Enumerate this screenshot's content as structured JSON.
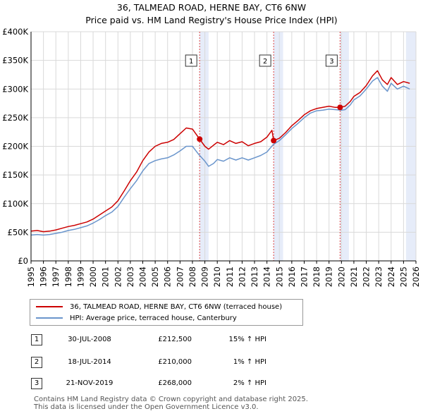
{
  "chart_data": {
    "type": "line",
    "title": "36, TALMEAD ROAD, HERNE BAY, CT6 6NW",
    "subtitle": "Price paid vs. HM Land Registry's House Price Index (HPI)",
    "xlabel": "",
    "ylabel": "",
    "xlim": [
      1995,
      2026
    ],
    "ylim": [
      0,
      400000
    ],
    "x_ticks": [
      "1995",
      "1996",
      "1997",
      "1998",
      "1999",
      "2000",
      "2001",
      "2002",
      "2003",
      "2004",
      "2005",
      "2006",
      "2007",
      "2008",
      "2009",
      "2010",
      "2011",
      "2012",
      "2013",
      "2014",
      "2015",
      "2016",
      "2017",
      "2018",
      "2019",
      "2020",
      "2021",
      "2022",
      "2023",
      "2024",
      "2025",
      "2026"
    ],
    "y_ticks": [
      {
        "value": 0,
        "label": "£0"
      },
      {
        "value": 50000,
        "label": "£50K"
      },
      {
        "value": 100000,
        "label": "£100K"
      },
      {
        "value": 150000,
        "label": "£150K"
      },
      {
        "value": 200000,
        "label": "£200K"
      },
      {
        "value": 250000,
        "label": "£250K"
      },
      {
        "value": 300000,
        "label": "£300K"
      },
      {
        "value": 350000,
        "label": "£350K"
      },
      {
        "value": 400000,
        "label": "£400K"
      }
    ],
    "shaded_periods": [
      [
        2008.58,
        2009.3
      ],
      [
        2014.54,
        2015.3
      ],
      [
        2019.89,
        2020.6
      ],
      [
        2025.2,
        2026
      ]
    ],
    "series": [
      {
        "name": "36, TALMEAD ROAD, HERNE BAY, CT6 6NW (terraced house)",
        "color": "#cc0000",
        "x": [
          1995.0,
          1995.5,
          1996.0,
          1996.5,
          1997.0,
          1997.5,
          1998.0,
          1998.5,
          1999.0,
          1999.5,
          2000.0,
          2000.5,
          2001.0,
          2001.5,
          2002.0,
          2002.5,
          2003.0,
          2003.5,
          2004.0,
          2004.5,
          2005.0,
          2005.5,
          2006.0,
          2006.5,
          2007.0,
          2007.5,
          2008.0,
          2008.58,
          2009.0,
          2009.3,
          2009.7,
          2010.0,
          2010.5,
          2011.0,
          2011.5,
          2012.0,
          2012.5,
          2013.0,
          2013.5,
          2014.0,
          2014.4,
          2014.54,
          2015.0,
          2015.5,
          2016.0,
          2016.5,
          2017.0,
          2017.5,
          2018.0,
          2018.5,
          2019.0,
          2019.5,
          2019.89,
          2020.3,
          2020.7,
          2021.0,
          2021.5,
          2022.0,
          2022.5,
          2022.9,
          2023.3,
          2023.7,
          2024.0,
          2024.5,
          2025.0,
          2025.5
        ],
        "y": [
          52000,
          53000,
          51000,
          52000,
          54000,
          57000,
          60000,
          62000,
          65000,
          68000,
          73000,
          80000,
          87000,
          94000,
          105000,
          122000,
          140000,
          155000,
          175000,
          190000,
          200000,
          205000,
          207000,
          212000,
          222000,
          232000,
          230000,
          212500,
          200000,
          195000,
          202000,
          207000,
          203000,
          210000,
          205000,
          208000,
          201000,
          205000,
          208000,
          216000,
          228000,
          210000,
          214000,
          224000,
          236000,
          245000,
          255000,
          262000,
          266000,
          268000,
          270000,
          268000,
          268000,
          270000,
          278000,
          287000,
          294000,
          306000,
          323000,
          332000,
          316000,
          308000,
          320000,
          308000,
          313000,
          310000
        ]
      },
      {
        "name": "HPI: Average price, terraced house, Canterbury",
        "color": "#6a95cc",
        "x": [
          1995.0,
          1995.5,
          1996.0,
          1996.5,
          1997.0,
          1997.5,
          1998.0,
          1998.5,
          1999.0,
          1999.5,
          2000.0,
          2000.5,
          2001.0,
          2001.5,
          2002.0,
          2002.5,
          2003.0,
          2003.5,
          2004.0,
          2004.5,
          2005.0,
          2005.5,
          2006.0,
          2006.5,
          2007.0,
          2007.5,
          2008.0,
          2008.5,
          2009.0,
          2009.3,
          2009.7,
          2010.0,
          2010.5,
          2011.0,
          2011.5,
          2012.0,
          2012.5,
          2013.0,
          2013.5,
          2014.0,
          2014.5,
          2015.0,
          2015.5,
          2016.0,
          2016.5,
          2017.0,
          2017.5,
          2018.0,
          2018.5,
          2019.0,
          2019.5,
          2020.0,
          2020.3,
          2020.7,
          2021.0,
          2021.5,
          2022.0,
          2022.5,
          2022.9,
          2023.3,
          2023.7,
          2024.0,
          2024.5,
          2025.0,
          2025.5
        ],
        "y": [
          45000,
          46000,
          45000,
          46000,
          48000,
          50000,
          53000,
          55000,
          58000,
          61000,
          66000,
          72000,
          79000,
          85000,
          95000,
          111000,
          126000,
          140000,
          157000,
          170000,
          175000,
          178000,
          180000,
          185000,
          192000,
          200000,
          200000,
          186000,
          174000,
          165000,
          170000,
          177000,
          174000,
          180000,
          176000,
          180000,
          176000,
          180000,
          184000,
          190000,
          203000,
          210000,
          220000,
          231000,
          240000,
          250000,
          258000,
          262000,
          263000,
          265000,
          264000,
          263000,
          264000,
          272000,
          281000,
          288000,
          300000,
          314000,
          320000,
          305000,
          296000,
          310000,
          300000,
          305000,
          300000
        ]
      }
    ],
    "sales": [
      {
        "label": "1",
        "x": 2008.58,
        "price": 212500
      },
      {
        "label": "2",
        "x": 2014.54,
        "price": 210000
      },
      {
        "label": "3",
        "x": 2019.89,
        "price": 268000
      }
    ]
  },
  "legend": {
    "property_label": "36, TALMEAD ROAD, HERNE BAY, CT6 6NW (terraced house)",
    "hpi_label": "HPI: Average price, terraced house, Canterbury"
  },
  "transactions": [
    {
      "num": "1",
      "date": "30-JUL-2008",
      "price": "£212,500",
      "hpi": "15% ↑ HPI"
    },
    {
      "num": "2",
      "date": "18-JUL-2014",
      "price": "£210,000",
      "hpi": "1% ↑ HPI"
    },
    {
      "num": "3",
      "date": "21-NOV-2019",
      "price": "£268,000",
      "hpi": "2% ↑ HPI"
    }
  ],
  "footer": {
    "line1": "Contains HM Land Registry data © Crown copyright and database right 2025.",
    "line2": "This data is licensed under the Open Government Licence v3.0."
  }
}
